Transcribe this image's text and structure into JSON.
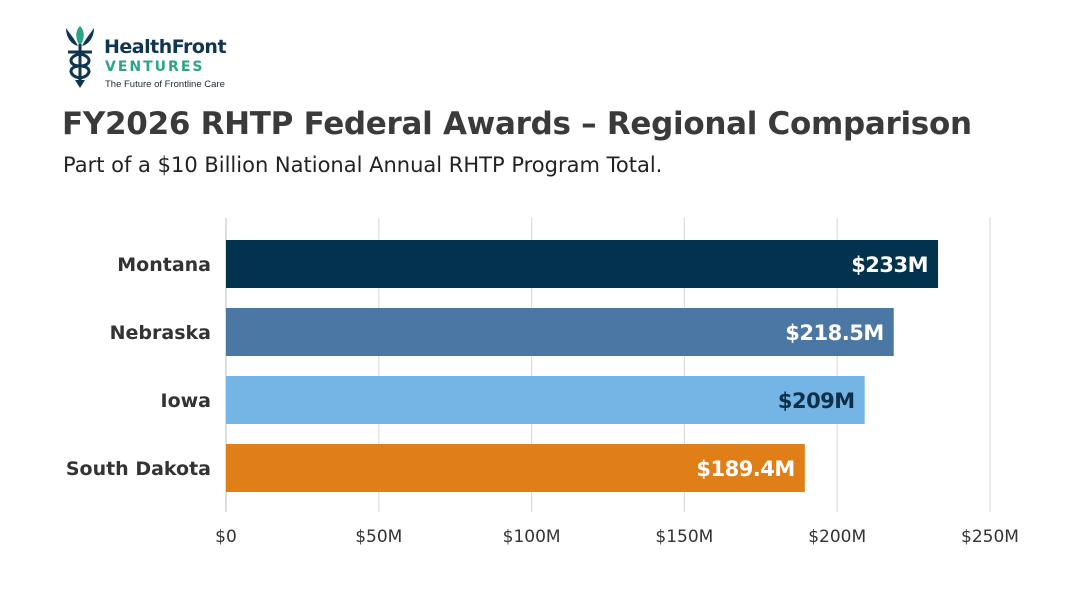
{
  "logo": {
    "name": "HealthFront",
    "sub": "VENTURES",
    "tagline": "The Future of Frontline Care"
  },
  "title": "FY2026 RHTP Federal Awards – Regional Comparison",
  "subtitle": "Part of a $10 Billion National Annual RHTP Program Total.",
  "chart_data": {
    "type": "bar",
    "orientation": "horizontal",
    "title": "FY2026 RHTP Federal Awards – Regional Comparison",
    "subtitle": "Part of a $10 Billion National Annual RHTP Program Total.",
    "categories": [
      "Montana",
      "Nebraska",
      "Iowa",
      "South Dakota"
    ],
    "values": [
      233,
      218.5,
      209,
      189.4
    ],
    "data_labels": [
      "$233M",
      "$218.5M",
      "$209M",
      "$189.4M"
    ],
    "colors": [
      "#03324f",
      "#4a77a3",
      "#74b5e6",
      "#e07e17"
    ],
    "label_colors": [
      "#ffffff",
      "#ffffff",
      "#0d2f48",
      "#ffffff"
    ],
    "xlim": [
      0,
      250
    ],
    "xticks": [
      0,
      50,
      100,
      150,
      200,
      250
    ],
    "xtick_labels": [
      "$0",
      "$50M",
      "$100M",
      "$150M",
      "$200M",
      "$250M"
    ],
    "grid": "vertical",
    "xlabel": "",
    "ylabel": ""
  }
}
